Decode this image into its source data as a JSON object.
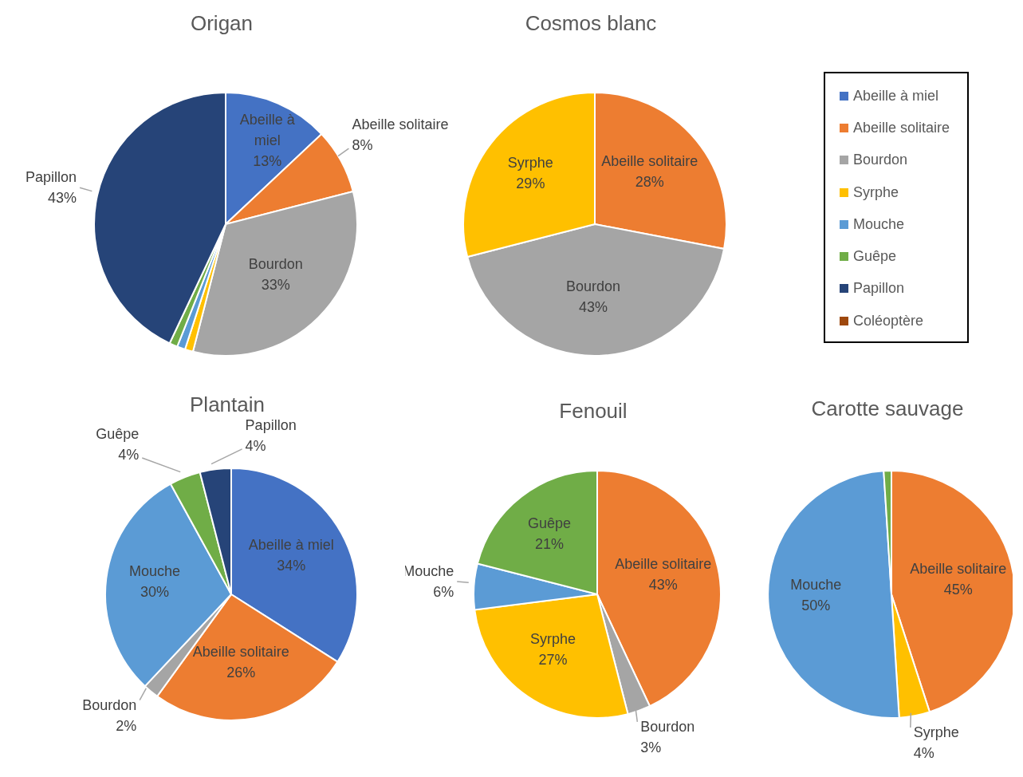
{
  "chart_data": [
    {
      "type": "pie",
      "title": "Origan",
      "categories": [
        "Abeille à miel",
        "Abeille solitaire",
        "Bourdon",
        null,
        null,
        null,
        "Papillon"
      ],
      "values": [
        13,
        8,
        33,
        1,
        1,
        1,
        43
      ],
      "colors": [
        "#4472c4",
        "#ed7d31",
        "#a5a5a5",
        "#ffc000",
        "#5b9bd5",
        "#70ad47",
        "#264478"
      ],
      "value_labels": [
        "13%",
        "8%",
        "33%",
        null,
        null,
        null,
        "43%"
      ]
    },
    {
      "type": "pie",
      "title": "Cosmos blanc",
      "categories": [
        "Abeille à miel",
        "Abeille solitaire",
        "Bourdon",
        "Syrphe",
        "Mouche",
        "Guêpe",
        "Papillon",
        "Coléoptère"
      ],
      "values": [
        0,
        28,
        43,
        29,
        0,
        0,
        0,
        0
      ],
      "colors": [
        "#4472c4",
        "#ed7d31",
        "#a5a5a5",
        "#ffc000",
        "#5b9bd5",
        "#70ad47",
        "#264478",
        "#9e480e"
      ],
      "value_labels": [
        null,
        "28%",
        "43%",
        "29%",
        null,
        null,
        null,
        null
      ],
      "legend": "right"
    },
    {
      "type": "pie",
      "title": "Plantain",
      "categories": [
        "Abeille à miel",
        "Abeille solitaire",
        "Bourdon",
        "Mouche",
        "Guêpe",
        "Papillon"
      ],
      "values": [
        34,
        26,
        2,
        30,
        4,
        4
      ],
      "colors": [
        "#4472c4",
        "#ed7d31",
        "#a5a5a5",
        "#5b9bd5",
        "#70ad47",
        "#264478"
      ],
      "value_labels": [
        "34%",
        "26%",
        "2%",
        "30%",
        "4%",
        "4%"
      ]
    },
    {
      "type": "pie",
      "title": "Fenouil",
      "categories": [
        "Abeille solitaire",
        "Bourdon",
        "Syrphe",
        "Mouche",
        "Guêpe"
      ],
      "values": [
        43,
        3,
        27,
        6,
        21
      ],
      "colors": [
        "#ed7d31",
        "#a5a5a5",
        "#ffc000",
        "#5b9bd5",
        "#70ad47"
      ],
      "value_labels": [
        "43%",
        "3%",
        "27%",
        "6%",
        "21%"
      ]
    },
    {
      "type": "pie",
      "title": "Carotte sauvage",
      "categories": [
        "Abeille solitaire",
        "Syrphe",
        "Mouche",
        null
      ],
      "values": [
        45,
        4,
        50,
        1
      ],
      "colors": [
        "#ed7d31",
        "#ffc000",
        "#5b9bd5",
        "#70ad47"
      ],
      "value_labels": [
        "45%",
        "4%",
        "50%",
        null
      ]
    }
  ]
}
